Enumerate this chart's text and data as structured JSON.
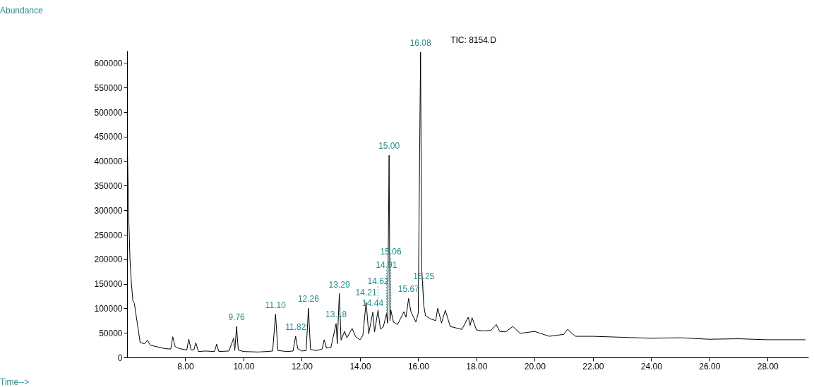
{
  "chart_data": {
    "type": "line",
    "title": "TIC: 8154.D",
    "x": [
      6.01,
      6.05,
      6.1,
      6.15,
      6.2,
      6.25,
      6.35,
      6.45,
      6.6,
      6.7,
      6.8,
      7.0,
      7.3,
      7.5,
      7.57,
      7.65,
      7.8,
      8.05,
      8.12,
      8.2,
      8.3,
      8.36,
      8.45,
      8.7,
      9.0,
      9.08,
      9.15,
      9.5,
      9.66,
      9.7,
      9.76,
      9.82,
      10.0,
      10.5,
      10.8,
      11.0,
      11.1,
      11.18,
      11.5,
      11.7,
      11.79,
      11.86,
      12.0,
      12.15,
      12.23,
      12.3,
      12.5,
      12.7,
      12.77,
      12.85,
      13.0,
      13.18,
      13.22,
      13.29,
      13.35,
      13.47,
      13.55,
      13.73,
      13.85,
      14.0,
      14.1,
      14.21,
      14.3,
      14.44,
      14.5,
      14.62,
      14.7,
      14.8,
      14.91,
      14.95,
      15.0,
      15.03,
      15.06,
      15.15,
      15.29,
      15.4,
      15.51,
      15.58,
      15.67,
      15.75,
      15.92,
      16.0,
      16.08,
      16.12,
      16.19,
      16.25,
      16.4,
      16.6,
      16.67,
      16.8,
      16.93,
      17.1,
      17.5,
      17.72,
      17.78,
      17.85,
      18.0,
      18.2,
      18.5,
      18.68,
      18.8,
      19.0,
      19.25,
      19.5,
      20.0,
      20.5,
      21.0,
      21.13,
      21.4,
      22.0,
      23.0,
      24.0,
      25.0,
      26.0,
      27.0,
      28.0,
      29.3
    ],
    "series": [
      {
        "color": "#000000",
        "values": [
          430000,
          300000,
          200000,
          150000,
          115000,
          110000,
          70000,
          30000,
          28000,
          35000,
          25000,
          22000,
          18000,
          17000,
          42000,
          22000,
          18000,
          15000,
          37000,
          15000,
          16000,
          30000,
          12000,
          13000,
          12000,
          27000,
          12000,
          13000,
          39000,
          14000,
          63000,
          15000,
          12000,
          11000,
          12000,
          13000,
          88000,
          14000,
          12000,
          13000,
          43000,
          18000,
          13000,
          14000,
          100000,
          16000,
          14000,
          17000,
          36000,
          19000,
          20000,
          69000,
          28000,
          130000,
          35000,
          53000,
          40000,
          59000,
          42000,
          36000,
          45000,
          113000,
          48000,
          92000,
          52000,
          96000,
          58000,
          62000,
          89000,
          70000,
          412000,
          75000,
          96000,
          72000,
          67000,
          80000,
          93000,
          82000,
          120000,
          93000,
          72000,
          90000,
          622000,
          182000,
          106000,
          85000,
          79000,
          75000,
          100000,
          70000,
          96000,
          63000,
          57000,
          82000,
          65000,
          81000,
          56000,
          54000,
          55000,
          67000,
          53000,
          52000,
          63000,
          49000,
          53000,
          43000,
          47000,
          57000,
          43000,
          43000,
          41000,
          39000,
          40000,
          37000,
          38000,
          36000,
          36000
        ]
      }
    ],
    "xlim": [
      6.0,
      29.4
    ],
    "ylim": [
      0,
      625000
    ],
    "xticks": [
      {
        "value": 8,
        "label": "8.00"
      },
      {
        "value": 10,
        "label": "10.00"
      },
      {
        "value": 12,
        "label": "12.00"
      },
      {
        "value": 14,
        "label": "14.00"
      },
      {
        "value": 16,
        "label": "16.00"
      },
      {
        "value": 18,
        "label": "18.00"
      },
      {
        "value": 20,
        "label": "20.00"
      },
      {
        "value": 22,
        "label": "22.00"
      },
      {
        "value": 24,
        "label": "24.00"
      },
      {
        "value": 26,
        "label": "26.00"
      },
      {
        "value": 28,
        "label": "28.00"
      }
    ],
    "yticks": [
      0,
      50000,
      100000,
      150000,
      200000,
      250000,
      300000,
      350000,
      400000,
      450000,
      500000,
      550000,
      600000
    ],
    "annotations": [
      "Abundance",
      "Time-->",
      {
        "text": "9.76",
        "x": 9.76,
        "y": 63000
      },
      {
        "text": "11.10",
        "x": 11.1,
        "y": 88000
      },
      {
        "text": "11.82",
        "x": 11.79,
        "y": 43000
      },
      {
        "text": "12.26",
        "x": 12.23,
        "y": 100000
      },
      {
        "text": "13.18",
        "x": 13.18,
        "y": 69000
      },
      {
        "text": "13.29",
        "x": 13.29,
        "y": 130000
      },
      {
        "text": "14.21",
        "x": 14.21,
        "y": 113000
      },
      {
        "text": "14.44",
        "x": 14.44,
        "y": 92000
      },
      {
        "text": "14.62",
        "x": 14.62,
        "y": 96000
      },
      {
        "text": "14.91",
        "x": 14.91,
        "y": 89000
      },
      {
        "text": "15.00",
        "x": 15.0,
        "y": 412000
      },
      {
        "text": "15.06",
        "x": 15.06,
        "y": 96000
      },
      {
        "text": "15.67",
        "x": 15.67,
        "y": 120000
      },
      {
        "text": "16.08",
        "x": 16.08,
        "y": 622000
      },
      {
        "text": "16.25",
        "x": 16.19,
        "y": 106000
      }
    ],
    "grid": false,
    "marker": "none",
    "line_style": "solid"
  }
}
